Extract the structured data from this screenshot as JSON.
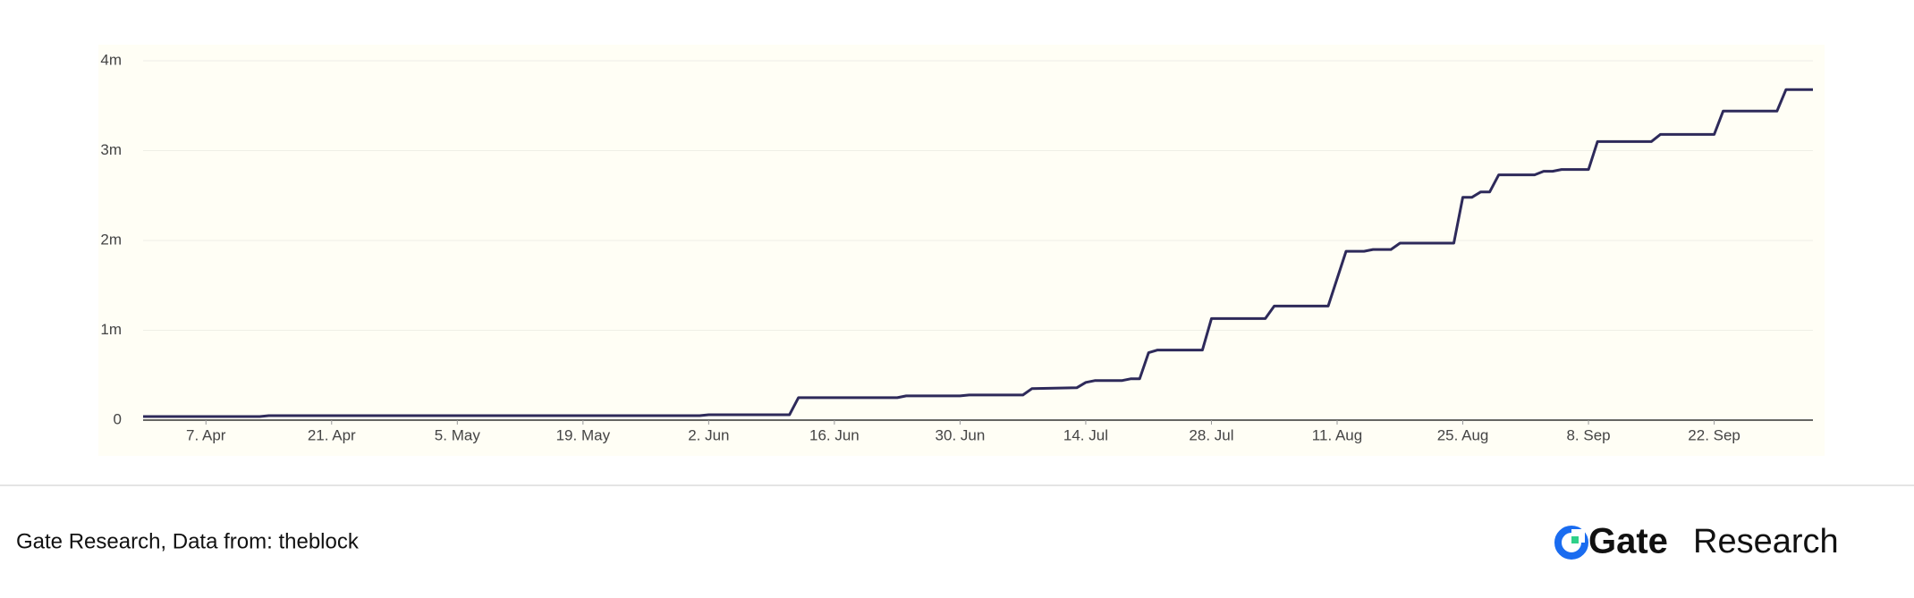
{
  "chart_data": {
    "type": "line",
    "x": [
      "03-31",
      "04-13",
      "04-14",
      "06-01",
      "06-02",
      "06-11",
      "06-12",
      "06-23",
      "06-24",
      "06-30",
      "07-01",
      "07-07",
      "07-08",
      "07-13",
      "07-14",
      "07-15",
      "07-18",
      "07-19",
      "07-20",
      "07-21",
      "07-22",
      "07-27",
      "07-28",
      "08-03",
      "08-04",
      "08-10",
      "08-12",
      "08-14",
      "08-15",
      "08-17",
      "08-18",
      "08-24",
      "08-25",
      "08-26",
      "08-27",
      "08-28",
      "08-29",
      "09-02",
      "09-03",
      "09-04",
      "09-05",
      "09-08",
      "09-09",
      "09-15",
      "09-16",
      "09-22",
      "09-23",
      "09-29",
      "09-30",
      "10-03"
    ],
    "series": [
      {
        "color": "#2e2a5a",
        "values": [
          40000,
          40000,
          50000,
          50000,
          60000,
          60000,
          250000,
          250000,
          270000,
          270000,
          280000,
          280000,
          350000,
          360000,
          420000,
          440000,
          440000,
          460000,
          460000,
          750000,
          780000,
          780000,
          1130000,
          1130000,
          1270000,
          1270000,
          1880000,
          1880000,
          1900000,
          1900000,
          1970000,
          1970000,
          2480000,
          2480000,
          2540000,
          2540000,
          2730000,
          2730000,
          2770000,
          2770000,
          2790000,
          2790000,
          3100000,
          3100000,
          3180000,
          3180000,
          3440000,
          3440000,
          3680000,
          3680000
        ]
      }
    ],
    "xlim": [
      "03-31",
      "10-03"
    ],
    "xticks": [
      {
        "value": "04-07",
        "label": "7. Apr"
      },
      {
        "value": "04-21",
        "label": "21. Apr"
      },
      {
        "value": "05-05",
        "label": "5. May"
      },
      {
        "value": "05-19",
        "label": "19. May"
      },
      {
        "value": "06-02",
        "label": "2. Jun"
      },
      {
        "value": "06-16",
        "label": "16. Jun"
      },
      {
        "value": "06-30",
        "label": "30. Jun"
      },
      {
        "value": "07-14",
        "label": "14. Jul"
      },
      {
        "value": "07-28",
        "label": "28. Jul"
      },
      {
        "value": "08-11",
        "label": "11. Aug"
      },
      {
        "value": "08-25",
        "label": "25. Aug"
      },
      {
        "value": "09-08",
        "label": "8. Sep"
      },
      {
        "value": "09-22",
        "label": "22. Sep"
      }
    ],
    "ylim": [
      0,
      4000000
    ],
    "yticks": [
      0,
      {
        "value": 1000000,
        "label": "1m"
      },
      {
        "value": 2000000,
        "label": "2m"
      },
      {
        "value": 3000000,
        "label": "3m"
      },
      {
        "value": 4000000,
        "label": "4m"
      }
    ],
    "grid": true
  },
  "footer": {
    "source": "Gate Research, Data from:  theblock"
  },
  "logo": {
    "brand": "Gate",
    "suffix": "Research"
  }
}
